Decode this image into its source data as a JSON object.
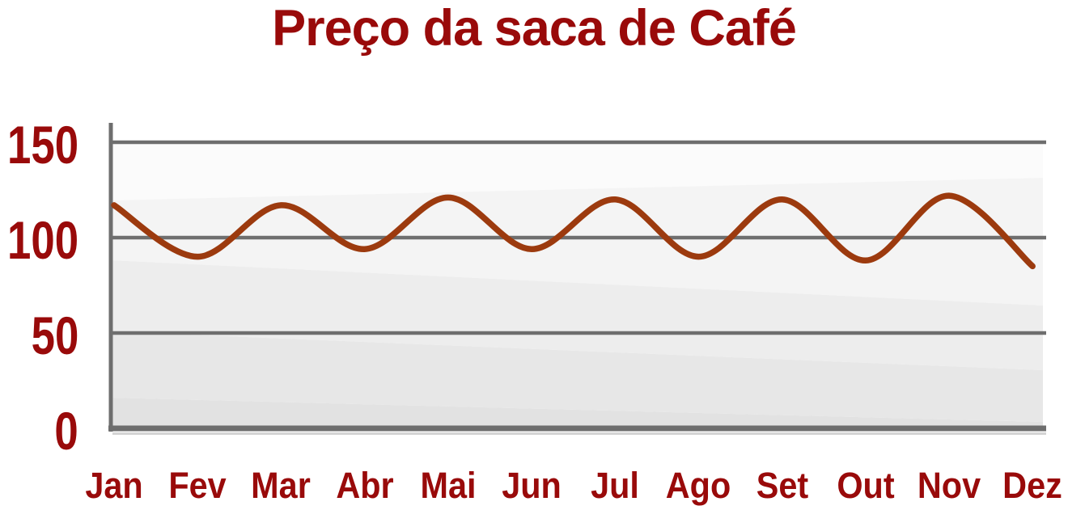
{
  "chart_data": {
    "type": "line",
    "title": "Preço da saca de Café",
    "categories": [
      "Jan",
      "Fev",
      "Mar",
      "Abr",
      "Mai",
      "Jun",
      "Jul",
      "Ago",
      "Set",
      "Out",
      "Nov",
      "Dez"
    ],
    "values": [
      117,
      90,
      117,
      94,
      121,
      94,
      120,
      90,
      120,
      88,
      122,
      85
    ],
    "xlabel": "",
    "ylabel": "",
    "y_ticks": [
      150,
      100,
      50,
      0
    ],
    "ylim": [
      0,
      150
    ],
    "grid": "horizontal",
    "legend": false,
    "colors": {
      "line": "#9c3a0e",
      "labels": "#990a0a",
      "grid": "#6e6e6e",
      "axis_shadow": "#d4d4d4",
      "plot_bands": [
        "#fbfbfb",
        "#f4f4f4",
        "#ededed",
        "#e7e7e7",
        "#e2e2e2"
      ]
    }
  }
}
